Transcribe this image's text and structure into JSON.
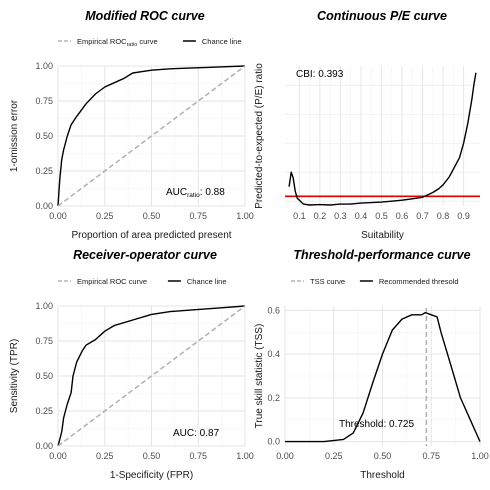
{
  "chart_data": [
    {
      "type": "line",
      "title": "Modified ROC curve",
      "xlabel": "Proportion of area predicted present",
      "ylabel": "1-omission error",
      "xlim": [
        0,
        1
      ],
      "ylim": [
        0,
        1
      ],
      "xticks": [
        "0.00",
        "0.25",
        "0.50",
        "0.75",
        "1.00"
      ],
      "yticks": [
        "0.00",
        "0.25",
        "0.50",
        "0.75",
        "1.00"
      ],
      "legend": [
        {
          "label": "Empirical ROC",
          "sub": "ratio",
          "label2": " curve",
          "style": "dashed"
        },
        {
          "label": "Chance line",
          "sub": "",
          "label2": "",
          "style": "solid"
        }
      ],
      "annotation": {
        "main": "AUC",
        "sub": "ratio",
        "value": ": 0.88"
      },
      "series": [
        {
          "style": "solid",
          "x": [
            0,
            0.005,
            0.01,
            0.02,
            0.03,
            0.05,
            0.07,
            0.1,
            0.15,
            0.2,
            0.25,
            0.3,
            0.35,
            0.4,
            0.45,
            0.5,
            0.6,
            0.7,
            0.8,
            0.9,
            1.0
          ],
          "y": [
            0,
            0.1,
            0.2,
            0.33,
            0.4,
            0.5,
            0.58,
            0.64,
            0.73,
            0.8,
            0.85,
            0.88,
            0.91,
            0.95,
            0.96,
            0.97,
            0.98,
            0.985,
            0.99,
            0.995,
            1.0
          ]
        },
        {
          "style": "dashed",
          "x": [
            0,
            1
          ],
          "y": [
            0,
            1
          ]
        }
      ]
    },
    {
      "type": "line",
      "title": "Continuous P/E curve",
      "xlabel": "Suitability",
      "ylabel": "Predicted-to-expected (P/E) ratio",
      "xlim": [
        0.03,
        0.98
      ],
      "ylim": [
        0,
        14.5
      ],
      "xticks": [
        "0.1",
        "0.2",
        "0.3",
        "0.4",
        "0.5",
        "0.6",
        "0.7",
        "0.8",
        "0.9"
      ],
      "yticks": [],
      "annotation": {
        "main": "CBI: 0.393"
      },
      "hline": {
        "y": 1,
        "color": "#dd0000"
      },
      "series": [
        {
          "style": "solid",
          "x": [
            0.05,
            0.06,
            0.07,
            0.08,
            0.09,
            0.1,
            0.12,
            0.15,
            0.2,
            0.25,
            0.3,
            0.35,
            0.4,
            0.45,
            0.5,
            0.55,
            0.6,
            0.65,
            0.7,
            0.72,
            0.75,
            0.78,
            0.8,
            0.83,
            0.85,
            0.88,
            0.9,
            0.92,
            0.94,
            0.95,
            0.96
          ],
          "y": [
            2.0,
            3.5,
            2.9,
            1.5,
            0.8,
            0.6,
            0.2,
            0.1,
            0.15,
            0.1,
            0.2,
            0.2,
            0.3,
            0.35,
            0.4,
            0.5,
            0.6,
            0.75,
            0.9,
            1.1,
            1.4,
            1.8,
            2.2,
            3.0,
            3.8,
            5.0,
            6.5,
            8.5,
            11.0,
            12.5,
            13.8
          ]
        }
      ]
    },
    {
      "type": "line",
      "title": "Receiver-operator curve",
      "xlabel": "1-Specificity (FPR)",
      "ylabel": "Sensitivity (TPR)",
      "xlim": [
        0,
        1
      ],
      "ylim": [
        0,
        1
      ],
      "xticks": [
        "0.00",
        "0.25",
        "0.50",
        "0.75",
        "1.00"
      ],
      "yticks": [
        "0.00",
        "0.25",
        "0.50",
        "0.75",
        "1.00"
      ],
      "legend": [
        {
          "label": "Empirical ROC curve",
          "sub": "",
          "label2": "",
          "style": "dashed"
        },
        {
          "label": "Chance line",
          "sub": "",
          "label2": "",
          "style": "solid"
        }
      ],
      "annotation": {
        "main": "AUC: 0.87"
      },
      "series": [
        {
          "style": "solid",
          "x": [
            0,
            0.01,
            0.02,
            0.03,
            0.05,
            0.07,
            0.08,
            0.1,
            0.13,
            0.15,
            0.2,
            0.25,
            0.3,
            0.4,
            0.5,
            0.6,
            0.7,
            0.8,
            0.9,
            1.0
          ],
          "y": [
            0,
            0.05,
            0.1,
            0.2,
            0.3,
            0.38,
            0.5,
            0.6,
            0.68,
            0.72,
            0.76,
            0.82,
            0.86,
            0.9,
            0.94,
            0.96,
            0.97,
            0.98,
            0.99,
            1.0
          ]
        },
        {
          "style": "dashed",
          "x": [
            0,
            1
          ],
          "y": [
            0,
            1
          ]
        }
      ]
    },
    {
      "type": "line",
      "title": "Threshold-performance curve",
      "xlabel": "Threshold",
      "ylabel": "True skill statistic (TSS)",
      "xlim": [
        0,
        1
      ],
      "ylim": [
        -0.02,
        0.62
      ],
      "xticks": [
        "0.00",
        "0.25",
        "0.50",
        "0.75",
        "1.00"
      ],
      "yticks": [
        "0.0",
        "0.2",
        "0.4",
        "0.6"
      ],
      "legend": [
        {
          "label": "TSS curve",
          "sub": "",
          "label2": "",
          "style": "dashed"
        },
        {
          "label": "Recommended thresold",
          "sub": "",
          "label2": "",
          "style": "solid"
        }
      ],
      "annotation": {
        "main": "Threshold: 0.725"
      },
      "vline": {
        "x": 0.725
      },
      "series": [
        {
          "style": "solid",
          "x": [
            0,
            0.05,
            0.1,
            0.2,
            0.3,
            0.35,
            0.4,
            0.45,
            0.5,
            0.55,
            0.6,
            0.65,
            0.7,
            0.72,
            0.75,
            0.78,
            0.8,
            0.85,
            0.9,
            0.95,
            0.98,
            1.0
          ],
          "y": [
            0.0,
            0.0,
            0.0,
            0.0,
            0.01,
            0.04,
            0.13,
            0.27,
            0.4,
            0.51,
            0.56,
            0.58,
            0.58,
            0.59,
            0.58,
            0.57,
            0.5,
            0.35,
            0.2,
            0.1,
            0.04,
            0.0
          ]
        }
      ]
    }
  ]
}
